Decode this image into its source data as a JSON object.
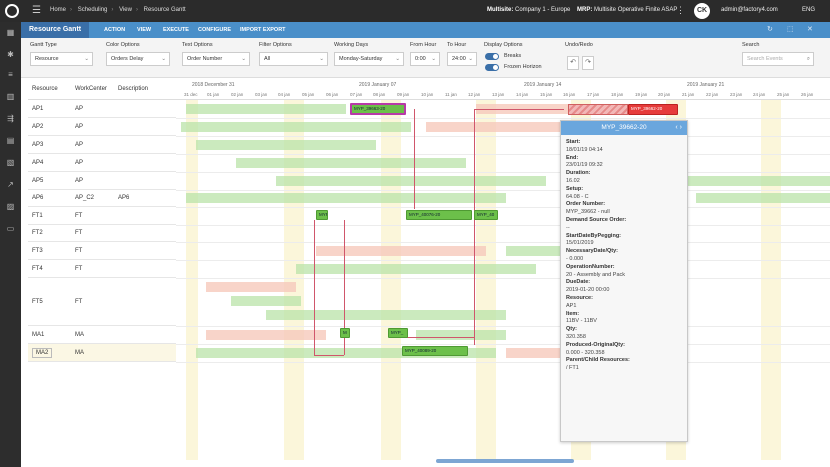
{
  "topbar": {
    "breadcrumbs": [
      "Home",
      "Scheduling",
      "View",
      "Resource Gantt"
    ],
    "multisite_label": "Multisite:",
    "multisite_value": "Company 1 - Europe",
    "mrp_label": "MRP:",
    "mrp_value": "Multisite Operative Finite ASAP",
    "avatar": "CK",
    "user": "admin@factory4.com",
    "language": "ENG"
  },
  "tabs": {
    "title": "Resource Gantt",
    "items": [
      "ACTION",
      "VIEW",
      "EXECUTE",
      "CONFIGURE",
      "IMPORT EXPORT"
    ]
  },
  "filters": {
    "gantt_type": {
      "label": "Gantt Type",
      "value": "Resource"
    },
    "color_options": {
      "label": "Color Options",
      "value": "Orders Delay"
    },
    "text_options": {
      "label": "Text Options",
      "value": "Order Number"
    },
    "filter_options": {
      "label": "Filter Options",
      "value": "All"
    },
    "working_days": {
      "label": "Working Days",
      "value": "Monday-Saturday"
    },
    "from_hour": {
      "label": "From Hour",
      "value": "0:00"
    },
    "to_hour": {
      "label": "To Hour",
      "value": "24:00"
    },
    "display_options": {
      "label": "Display Options",
      "breaks": "Breaks",
      "frozen": "Frozen Horizon"
    },
    "undo_redo": {
      "label": "Undo/Redo"
    },
    "search": {
      "label": "Search",
      "placeholder": "Search Events"
    }
  },
  "grid": {
    "headers": [
      "Resource",
      "WorkCenter",
      "Description"
    ],
    "rows": [
      {
        "resource": "AP1",
        "workcenter": "AP",
        "description": ""
      },
      {
        "resource": "AP2",
        "workcenter": "AP",
        "description": ""
      },
      {
        "resource": "AP3",
        "workcenter": "AP",
        "description": ""
      },
      {
        "resource": "AP4",
        "workcenter": "AP",
        "description": ""
      },
      {
        "resource": "AP5",
        "workcenter": "AP",
        "description": ""
      },
      {
        "resource": "AP6",
        "workcenter": "AP_C2",
        "description": "AP6"
      },
      {
        "resource": "FT1",
        "workcenter": "FT",
        "description": ""
      },
      {
        "resource": "FT2",
        "workcenter": "FT",
        "description": ""
      },
      {
        "resource": "FT3",
        "workcenter": "FT",
        "description": ""
      },
      {
        "resource": "FT4",
        "workcenter": "FT",
        "description": ""
      },
      {
        "resource": "FT5",
        "workcenter": "FT",
        "description": ""
      },
      {
        "resource": "MA1",
        "workcenter": "MA",
        "description": ""
      },
      {
        "resource": "MA2",
        "workcenter": "MA",
        "description": ""
      }
    ]
  },
  "timeline": {
    "weeks": [
      "2018 December 31",
      "2019 January 07",
      "2019 January 14",
      "2019 January 21"
    ],
    "days": [
      "31 dec",
      "01 jan",
      "02 jan",
      "03 jan",
      "04 jan",
      "05 jan",
      "06 jan",
      "07 jan",
      "08 jan",
      "09 jan",
      "10 jan",
      "11 jan",
      "12 jan",
      "13 jan",
      "14 jan",
      "15 jan",
      "16 jan",
      "17 jan",
      "18 jan",
      "19 jan",
      "20 jan",
      "21 jan",
      "22 jan",
      "23 jan",
      "24 jan",
      "25 jan",
      "26 jan",
      "27 jan"
    ]
  },
  "bars": {
    "ap1_selected": "MYP_39663-20",
    "ap1_red": "MYP_39662-20",
    "ft1_a": "MYP",
    "ft1_b": "MYP_40076-20",
    "ft1_c": "MYP_40",
    "ma1_a": "M",
    "ma1_b": "MYP_",
    "ma2": "MYP_40089-20"
  },
  "popup": {
    "title": "MYP_39662-20",
    "fields": [
      {
        "k": "Start:",
        "v": "18/01/19 04:14"
      },
      {
        "k": "End:",
        "v": "23/01/19 09:32"
      },
      {
        "k": "Duration:",
        "v": "16.02"
      },
      {
        "k": "Setup:",
        "v": "64.08 - C"
      },
      {
        "k": "Order Number:",
        "v": "MYP_39662 - null"
      },
      {
        "k": "Demand Source Order:",
        "v": "--"
      },
      {
        "k": "StartDateByPegging:",
        "v": "15/01/2019"
      },
      {
        "k": "NecessaryDate/Qty:",
        "v": "- 0.000"
      },
      {
        "k": "OperationNumber:",
        "v": "20 - Assembly and Pack"
      },
      {
        "k": "DueDate:",
        "v": "2019-01-20 00:00"
      },
      {
        "k": "Resource:",
        "v": "AP1"
      },
      {
        "k": "Item:",
        "v": "11BV - 11BV"
      },
      {
        "k": "Qty:",
        "v": "320.358"
      },
      {
        "k": "Produced-OriginalQty:",
        "v": "0.000 - 320.358"
      },
      {
        "k": "Parent/Child Resources:",
        "v": "/ FT1"
      }
    ]
  },
  "colors": {
    "accent": "#4a8fc9",
    "ok_bar": "#6cc04a",
    "late_bar": "#e63b3b",
    "link": "#d0566b"
  }
}
